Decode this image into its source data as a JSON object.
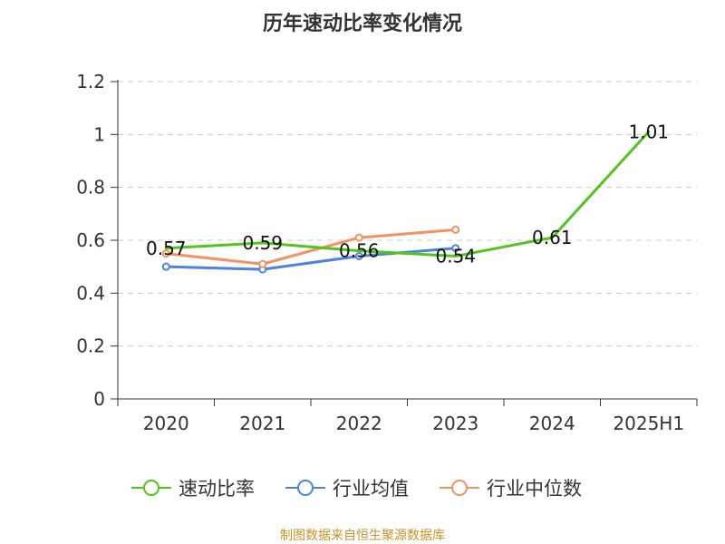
{
  "chart_data": {
    "type": "line",
    "title": "历年速动比率变化情况",
    "categories": [
      "2020",
      "2021",
      "2022",
      "2023",
      "2024",
      "2025H1"
    ],
    "ylim": [
      0,
      1.2
    ],
    "yticks": [
      0,
      0.2,
      0.4,
      0.6,
      0.8,
      1,
      1.2
    ],
    "ytick_labels": [
      "0",
      "0.2",
      "0.4",
      "0.6",
      "0.8",
      "1",
      "1.2"
    ],
    "grid": true,
    "legend_position": "bottom",
    "series": [
      {
        "name": "速动比率",
        "color": "#52c41a",
        "values": [
          0.57,
          0.59,
          0.56,
          0.54,
          0.61,
          1.01
        ],
        "labels": [
          "0.57",
          "0.59",
          "0.56",
          "0.54",
          "0.61",
          "1.01"
        ],
        "markers": false
      },
      {
        "name": "行业均值",
        "color": "#4f81e0",
        "values": [
          0.5,
          0.49,
          0.54,
          0.57,
          null,
          null
        ],
        "markers": true
      },
      {
        "name": "行业中位数",
        "color": "#f59261",
        "values": [
          0.55,
          0.51,
          0.61,
          0.64,
          null,
          null
        ],
        "markers": true
      }
    ]
  },
  "source": "制图数据来自恒生聚源数据库"
}
